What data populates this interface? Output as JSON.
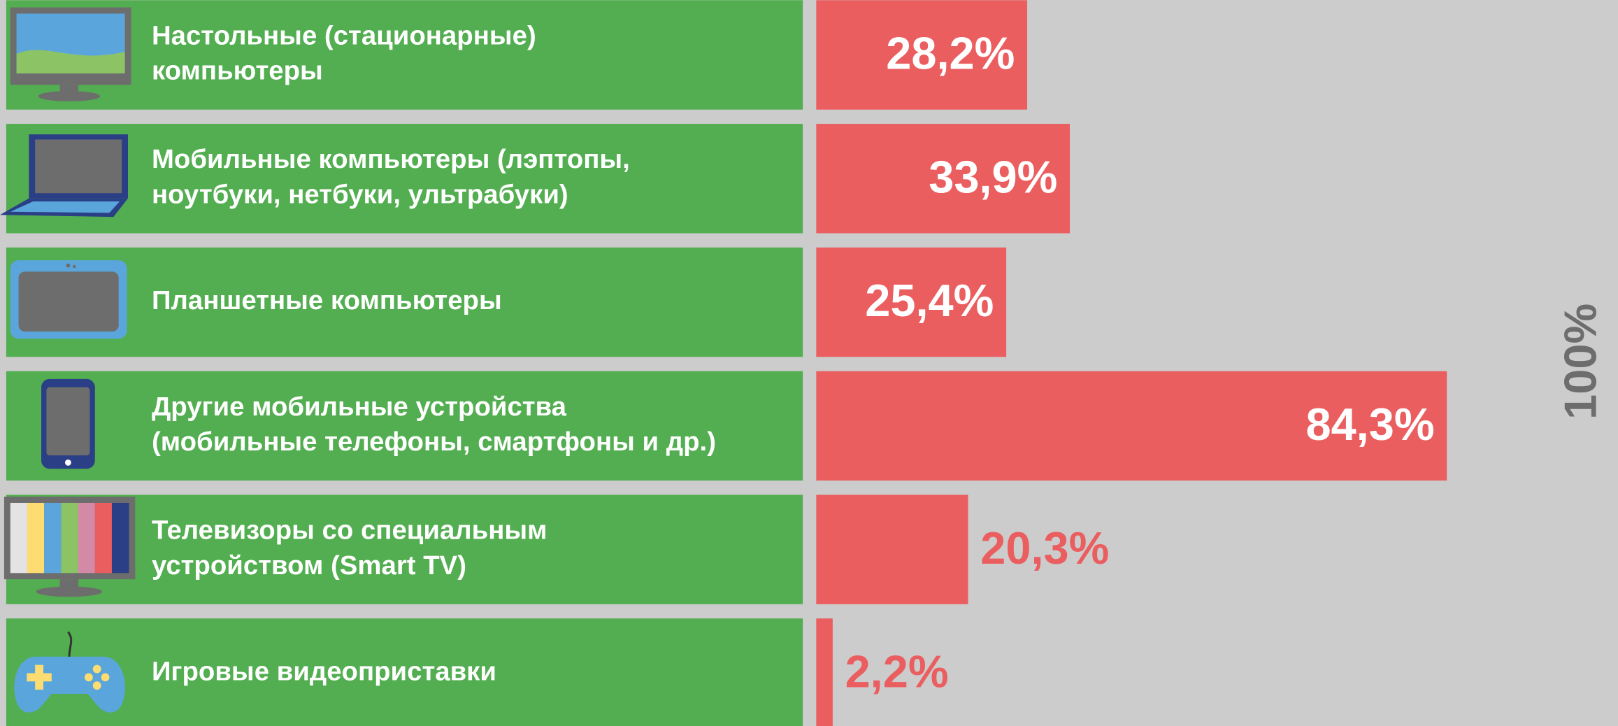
{
  "chart_data": {
    "type": "bar",
    "orientation": "horizontal",
    "categories": [
      [
        "Настольные (стационарные)",
        "компьютеры"
      ],
      [
        "Мобильные компьютеры (лэптопы,",
        "ноутбуки, нетбуки, ультрабуки)"
      ],
      [
        "Планшетные компьютеры"
      ],
      [
        "Другие мобильные устройства",
        "(мобильные телефоны, смартфоны и др.)"
      ],
      [
        "Телевизоры со специальным",
        "устройством (Smart TV)"
      ],
      [
        "Игровые видеоприставки"
      ]
    ],
    "values": [
      28.2,
      33.9,
      25.4,
      84.3,
      20.3,
      2.2
    ],
    "value_labels": [
      "28,2%",
      "33,9%",
      "25,4%",
      "84,3%",
      "20,3%",
      "2,2%"
    ],
    "color": "#eb5e60",
    "xlim": [
      0,
      100
    ],
    "annotation": "100%"
  }
}
